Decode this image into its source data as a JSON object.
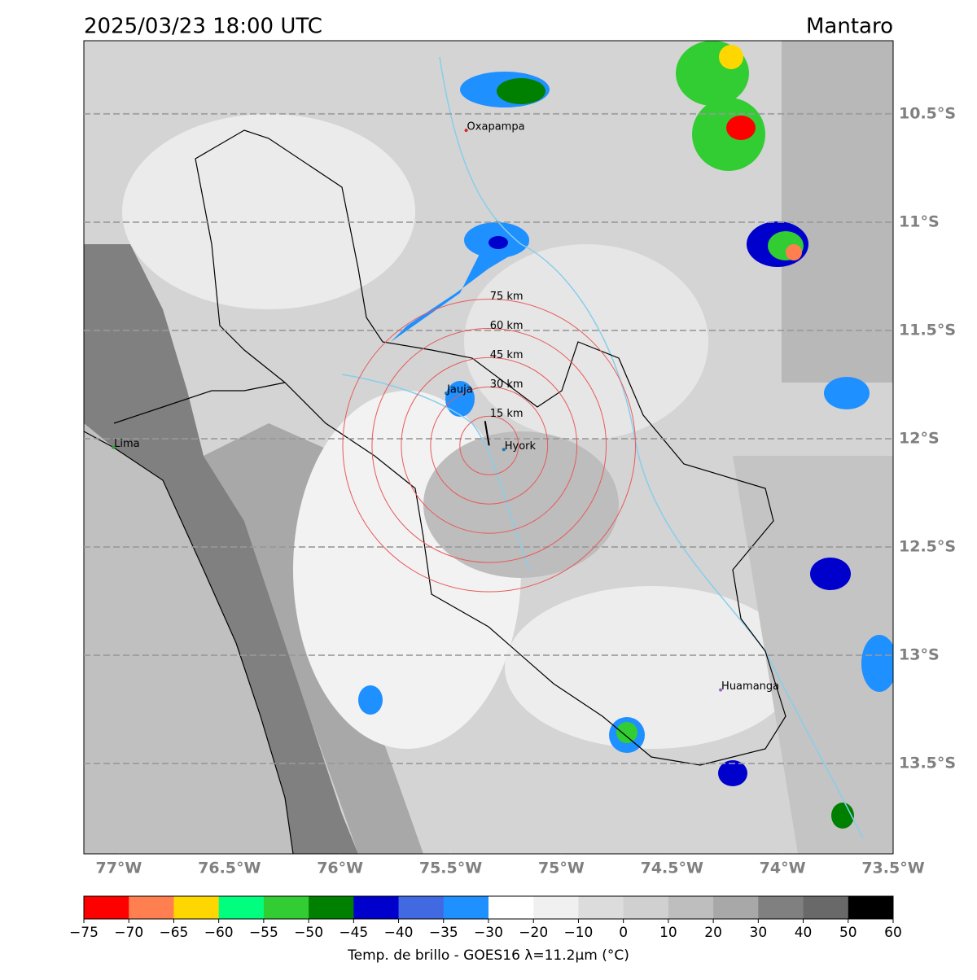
{
  "map": {
    "title_left": "2025/03/23 18:00 UTC",
    "title_right": "Mantaro",
    "extent": {
      "lon": [
        -77.158,
        -73.5
      ],
      "lat": [
        -10.162,
        -13.917
      ]
    },
    "lat_ticks": [
      {
        "value": -10.5,
        "label": "10.5°S"
      },
      {
        "value": -11,
        "label": "11°S"
      },
      {
        "value": -11.5,
        "label": "11.5°S"
      },
      {
        "value": -12,
        "label": "12°S"
      },
      {
        "value": -12.5,
        "label": "12.5°S"
      },
      {
        "value": -13,
        "label": "13°S"
      },
      {
        "value": -13.5,
        "label": "13.5°S"
      }
    ],
    "lon_ticks": [
      {
        "value": -77,
        "label": "77°W"
      },
      {
        "value": -76.5,
        "label": "76.5°W"
      },
      {
        "value": -76,
        "label": "76°W"
      },
      {
        "value": -75.5,
        "label": "75.5°W"
      },
      {
        "value": -75,
        "label": "75°W"
      },
      {
        "value": -74.5,
        "label": "74.5°W"
      },
      {
        "value": -74,
        "label": "74°W"
      },
      {
        "value": -73.5,
        "label": "73.5°W"
      }
    ],
    "cities": [
      {
        "name": "Oxapampa",
        "lon": -75.43,
        "lat": -10.576,
        "color": "#d62728"
      },
      {
        "name": "Jauja",
        "lon": -75.52,
        "lat": -11.79,
        "color": "#1f77b4"
      },
      {
        "name": "Hyork",
        "lon": -75.26,
        "lat": -12.05,
        "color": "#1f77b4"
      },
      {
        "name": "Lima",
        "lon": -77.025,
        "lat": -12.04,
        "color": "#2ca02c"
      },
      {
        "name": "Huamanga",
        "lon": -74.28,
        "lat": -13.16,
        "color": "#9467bd"
      }
    ],
    "rings": [
      {
        "value": 15,
        "label": "15 km"
      },
      {
        "value": 30,
        "label": "30 km"
      },
      {
        "value": 45,
        "label": "45 km"
      },
      {
        "value": 60,
        "label": "60 km"
      },
      {
        "value": 75,
        "label": "75 km"
      }
    ],
    "ring_color": "#e8595a",
    "colorbar": {
      "ticks": [
        {
          "value": -75,
          "label": "−75"
        },
        {
          "value": -70,
          "label": "−70"
        },
        {
          "value": -65,
          "label": "−65"
        },
        {
          "value": -60,
          "label": "−60"
        },
        {
          "value": -55,
          "label": "−55"
        },
        {
          "value": -50,
          "label": "−50"
        },
        {
          "value": -45,
          "label": "−45"
        },
        {
          "value": -40,
          "label": "−40"
        },
        {
          "value": -35,
          "label": "−35"
        },
        {
          "value": -30,
          "label": "−30"
        },
        {
          "value": -20,
          "label": "−20"
        },
        {
          "value": -10,
          "label": "−10"
        },
        0,
        10,
        20,
        30,
        40,
        50,
        60
      ],
      "colors": [
        "#ff0000",
        "#ff7f50",
        "#ffd700",
        "#00ff7f",
        "#32cd32",
        "#008000",
        "#0000cd",
        "#4169e1",
        "#1e90ff",
        "#ffffff",
        "#f0f0f0",
        "#dcdcdc",
        "#d0d0d0",
        "#bebebe",
        "#a8a8a8",
        "#808080",
        "#696969",
        "#000000"
      ],
      "label": "Temp. de brillo - GOES16 λ=11.2μm (°C)"
    }
  }
}
